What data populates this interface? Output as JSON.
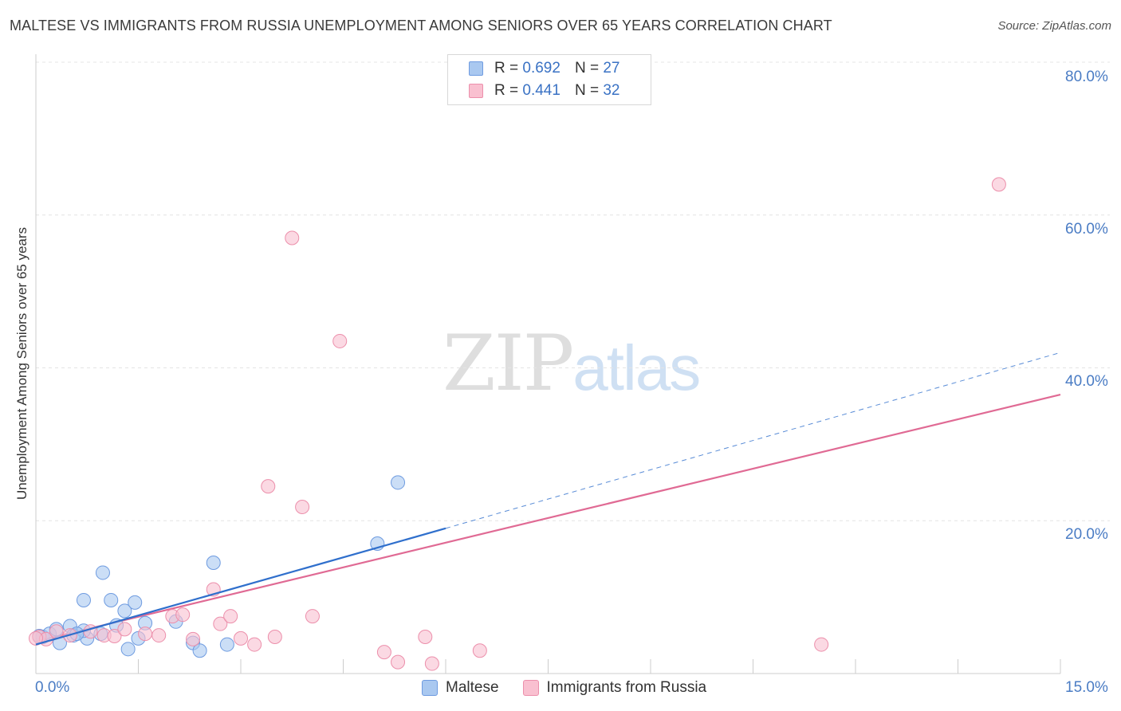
{
  "header": {
    "title": "MALTESE VS IMMIGRANTS FROM RUSSIA UNEMPLOYMENT AMONG SENIORS OVER 65 YEARS CORRELATION CHART",
    "source": "Source: ZipAtlas.com"
  },
  "watermark": {
    "zip": "ZIP",
    "atlas": "atlas"
  },
  "legend": {
    "r_label": "R =",
    "n_label": "N =",
    "rows": [
      {
        "r": "0.692",
        "n": "27",
        "color": "#a9c8f0",
        "stroke": "#6e9be0"
      },
      {
        "r": "0.441",
        "n": "32",
        "color": "#f9c0d0",
        "stroke": "#ec8fab"
      }
    ]
  },
  "chart_data": {
    "type": "scatter",
    "title": "MALTESE VS IMMIGRANTS FROM RUSSIA UNEMPLOYMENT AMONG SENIORS OVER 65 YEARS CORRELATION CHART",
    "xlabel": "",
    "ylabel": "Unemployment Among Seniors over 65 years",
    "xlim": [
      0,
      15
    ],
    "ylim": [
      0,
      80
    ],
    "x_tick_labels": [
      "0.0%",
      "15.0%"
    ],
    "y_tick_labels": [
      "20.0%",
      "40.0%",
      "60.0%",
      "80.0%"
    ],
    "y_ticks": [
      20,
      40,
      60,
      80
    ],
    "series": [
      {
        "name": "Maltese",
        "color": "#a9c8f0",
        "stroke": "#6e9be0",
        "line_color": "#2f6fcc",
        "trend": {
          "x0": 0,
          "y0": 3.8,
          "x1": 6,
          "y1": 19.0,
          "dash_to_x": 15,
          "dash_to_y": 42.0
        },
        "points": [
          [
            0.1,
            4.8
          ],
          [
            0.2,
            5.2
          ],
          [
            0.35,
            4.0
          ],
          [
            0.3,
            5.8
          ],
          [
            0.5,
            6.2
          ],
          [
            0.55,
            5.0
          ],
          [
            0.75,
            4.6
          ],
          [
            0.7,
            5.6
          ],
          [
            0.95,
            5.2
          ],
          [
            0.7,
            9.6
          ],
          [
            0.98,
            13.2
          ],
          [
            1.1,
            9.6
          ],
          [
            1.3,
            8.2
          ],
          [
            1.45,
            9.3
          ],
          [
            1.18,
            6.3
          ],
          [
            1.5,
            4.6
          ],
          [
            1.35,
            3.2
          ],
          [
            1.6,
            6.6
          ],
          [
            2.05,
            6.8
          ],
          [
            2.3,
            4.0
          ],
          [
            2.4,
            3.0
          ],
          [
            2.6,
            14.5
          ],
          [
            2.8,
            3.8
          ],
          [
            5.0,
            17.0
          ],
          [
            5.3,
            25.0
          ],
          [
            0.05,
            4.9
          ],
          [
            0.6,
            5.2
          ]
        ]
      },
      {
        "name": "Immigrants from Russia",
        "color": "#f9c0d0",
        "stroke": "#ec8fab",
        "line_color": "#e06a94",
        "trend": {
          "x0": 0,
          "y0": 4.2,
          "x1": 15,
          "y1": 36.5
        },
        "points": [
          [
            0.05,
            4.8
          ],
          [
            0.15,
            4.5
          ],
          [
            0.3,
            5.5
          ],
          [
            0.5,
            5.0
          ],
          [
            0.8,
            5.5
          ],
          [
            1.0,
            5.0
          ],
          [
            1.15,
            4.9
          ],
          [
            1.3,
            5.8
          ],
          [
            1.6,
            5.2
          ],
          [
            1.8,
            5.0
          ],
          [
            2.0,
            7.5
          ],
          [
            2.15,
            7.7
          ],
          [
            2.3,
            4.5
          ],
          [
            2.6,
            11.0
          ],
          [
            2.7,
            6.5
          ],
          [
            2.85,
            7.5
          ],
          [
            3.0,
            4.6
          ],
          [
            3.2,
            3.8
          ],
          [
            3.4,
            24.5
          ],
          [
            3.5,
            4.8
          ],
          [
            3.75,
            57.0
          ],
          [
            3.9,
            21.8
          ],
          [
            4.05,
            7.5
          ],
          [
            4.45,
            43.5
          ],
          [
            5.1,
            2.8
          ],
          [
            5.3,
            1.5
          ],
          [
            5.7,
            4.8
          ],
          [
            5.8,
            1.3
          ],
          [
            6.5,
            3.0
          ],
          [
            11.5,
            3.8
          ],
          [
            14.1,
            64.0
          ],
          [
            0.0,
            4.6
          ]
        ]
      }
    ]
  }
}
